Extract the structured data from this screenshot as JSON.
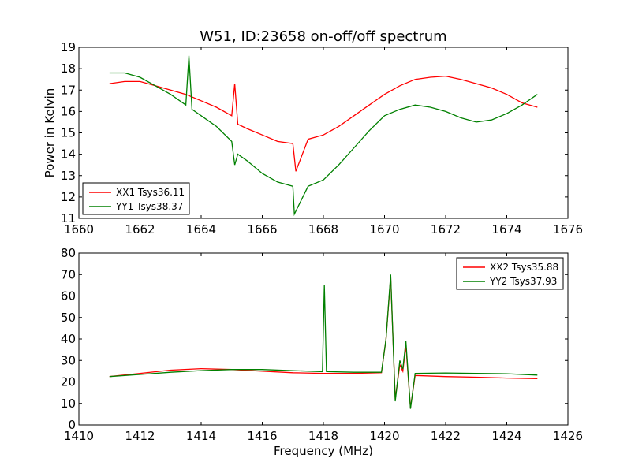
{
  "chart_data": [
    {
      "type": "line",
      "title": "W51, ID:23658 on-off/off spectrum",
      "xlabel": "",
      "ylabel": "Power in Kelvin",
      "xlim": [
        1660,
        1676
      ],
      "ylim": [
        11,
        19
      ],
      "xticks": [
        1660,
        1662,
        1664,
        1666,
        1668,
        1670,
        1672,
        1674,
        1676
      ],
      "yticks": [
        11,
        12,
        13,
        14,
        15,
        16,
        17,
        18,
        19
      ],
      "legend_position": "lower-left",
      "series": [
        {
          "name": "XX1 Tsys36.11",
          "color": "#ff0000",
          "x": [
            1661.0,
            1661.5,
            1662.0,
            1662.5,
            1663.0,
            1663.5,
            1664.0,
            1664.5,
            1665.0,
            1665.1,
            1665.2,
            1665.5,
            1666.0,
            1666.5,
            1667.0,
            1667.1,
            1667.5,
            1668.0,
            1668.5,
            1669.0,
            1669.5,
            1670.0,
            1670.5,
            1671.0,
            1671.5,
            1672.0,
            1672.5,
            1673.0,
            1673.5,
            1674.0,
            1674.5,
            1675.0
          ],
          "y": [
            17.3,
            17.4,
            17.4,
            17.2,
            17.0,
            16.8,
            16.5,
            16.2,
            15.8,
            17.3,
            15.4,
            15.2,
            14.9,
            14.6,
            14.5,
            13.2,
            14.7,
            14.9,
            15.3,
            15.8,
            16.3,
            16.8,
            17.2,
            17.5,
            17.6,
            17.65,
            17.5,
            17.3,
            17.1,
            16.8,
            16.4,
            16.2
          ]
        },
        {
          "name": "YY1 Tsys38.37",
          "color": "#008000",
          "x": [
            1661.0,
            1661.5,
            1662.0,
            1662.5,
            1663.0,
            1663.5,
            1663.6,
            1663.7,
            1664.0,
            1664.5,
            1665.0,
            1665.1,
            1665.2,
            1665.5,
            1666.0,
            1666.5,
            1667.0,
            1667.05,
            1667.5,
            1668.0,
            1668.5,
            1669.0,
            1669.5,
            1670.0,
            1670.5,
            1671.0,
            1671.5,
            1672.0,
            1672.5,
            1673.0,
            1673.5,
            1674.0,
            1674.5,
            1675.0
          ],
          "y": [
            17.8,
            17.8,
            17.6,
            17.2,
            16.8,
            16.3,
            18.6,
            16.1,
            15.8,
            15.3,
            14.6,
            13.5,
            14.0,
            13.7,
            13.1,
            12.7,
            12.5,
            11.2,
            12.5,
            12.8,
            13.5,
            14.3,
            15.1,
            15.8,
            16.1,
            16.3,
            16.2,
            16.0,
            15.7,
            15.5,
            15.6,
            15.9,
            16.3,
            16.8
          ]
        }
      ]
    },
    {
      "type": "line",
      "title": "",
      "xlabel": "Frequency (MHz)",
      "ylabel": "",
      "xlim": [
        1410,
        1426
      ],
      "ylim": [
        0,
        80
      ],
      "xticks": [
        1410,
        1412,
        1414,
        1416,
        1418,
        1420,
        1422,
        1424,
        1426
      ],
      "yticks": [
        0,
        10,
        20,
        30,
        40,
        50,
        60,
        70,
        80
      ],
      "legend_position": "upper-right",
      "series": [
        {
          "name": "XX2 Tsys35.88",
          "color": "#ff0000",
          "x": [
            1411.0,
            1412.0,
            1413.0,
            1414.0,
            1415.0,
            1416.0,
            1417.0,
            1418.0,
            1419.0,
            1419.9,
            1420.05,
            1420.2,
            1420.35,
            1420.5,
            1420.6,
            1420.7,
            1420.85,
            1421.0,
            1422.0,
            1423.0,
            1424.0,
            1425.0
          ],
          "y": [
            22.5,
            24.0,
            25.5,
            26.2,
            25.8,
            25.0,
            24.3,
            24.0,
            24.0,
            24.3,
            40.0,
            69.0,
            12.0,
            28.0,
            25.0,
            37.0,
            8.0,
            23.0,
            22.5,
            22.2,
            21.8,
            21.5
          ]
        },
        {
          "name": "YY2 Tsys37.93",
          "color": "#008000",
          "x": [
            1411.0,
            1412.0,
            1413.0,
            1414.0,
            1415.0,
            1416.0,
            1417.0,
            1417.97,
            1418.03,
            1418.1,
            1419.0,
            1419.9,
            1420.05,
            1420.2,
            1420.35,
            1420.5,
            1420.6,
            1420.7,
            1420.85,
            1421.0,
            1422.0,
            1423.0,
            1424.0,
            1425.0
          ],
          "y": [
            22.5,
            23.5,
            24.5,
            25.3,
            25.8,
            25.8,
            25.3,
            24.8,
            65.0,
            24.8,
            24.5,
            24.5,
            40.0,
            70.0,
            11.0,
            30.0,
            26.0,
            39.0,
            7.5,
            24.0,
            24.2,
            24.0,
            23.8,
            23.2
          ]
        }
      ]
    }
  ]
}
